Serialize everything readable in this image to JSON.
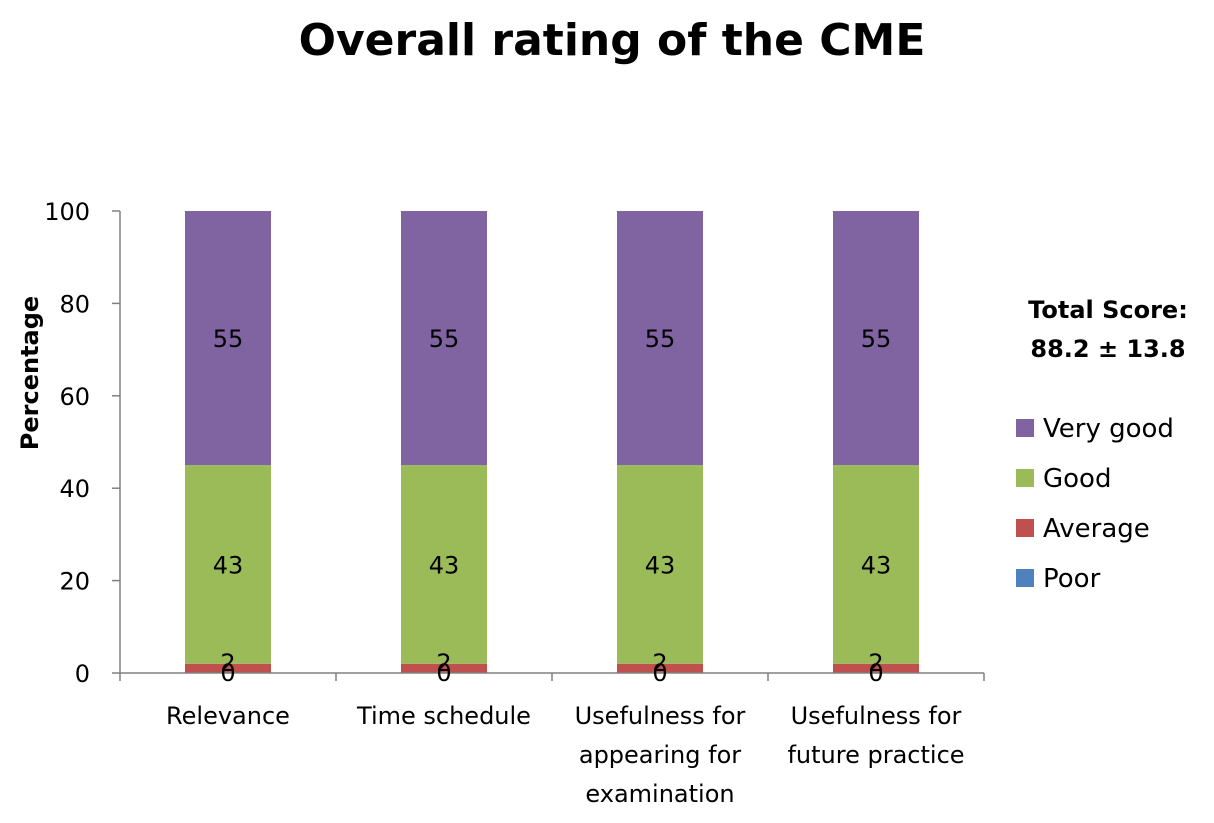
{
  "chart_data": {
    "type": "bar",
    "stacked": true,
    "title": "Overall rating of the CME",
    "xlabel": "",
    "ylabel": "Percentage",
    "ylim": [
      0,
      100
    ],
    "yticks": [
      0,
      20,
      40,
      60,
      80,
      100
    ],
    "grid": false,
    "legend_position": "right",
    "categories": [
      [
        "Relevance"
      ],
      [
        "Time schedule"
      ],
      [
        "Usefulness for",
        "appearing for",
        "examination"
      ],
      [
        "Usefulness for",
        "future practice"
      ]
    ],
    "series": [
      {
        "name": "Poor",
        "color": "#4f81bd",
        "values": [
          0,
          0,
          0,
          0
        ]
      },
      {
        "name": "Average",
        "color": "#c0504d",
        "values": [
          2,
          2,
          2,
          2
        ]
      },
      {
        "name": "Good",
        "color": "#9bbb59",
        "values": [
          43,
          43,
          43,
          43
        ]
      },
      {
        "name": "Very good",
        "color": "#8064a2",
        "values": [
          55,
          55,
          55,
          55
        ]
      }
    ],
    "annotation": [
      "Total Score:",
      "88.2 ± 13.8"
    ]
  }
}
